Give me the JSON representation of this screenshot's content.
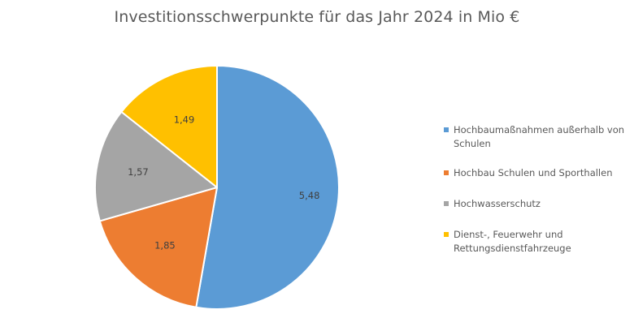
{
  "chart_data": {
    "type": "pie",
    "title": "Investitionsschwerpunkte für das Jahr 2024 in Mio €",
    "categories": [
      "Hochbaumaßnahmen außerhalb von Schulen",
      "Hochbau Schulen und Sporthallen",
      "Hochwasserschutz",
      "Dienst-, Feuerwehr und Rettungsdienstfahrzeuge"
    ],
    "values": [
      5.48,
      1.85,
      1.57,
      1.49
    ],
    "data_labels": [
      "5,48",
      "1,85",
      "1,57",
      "1,49"
    ],
    "colors": [
      "#5B9BD5",
      "#ED7D31",
      "#A5A5A5",
      "#FFC000"
    ],
    "legend_position": "right",
    "start_angle": "12 o'clock, clockwise"
  }
}
